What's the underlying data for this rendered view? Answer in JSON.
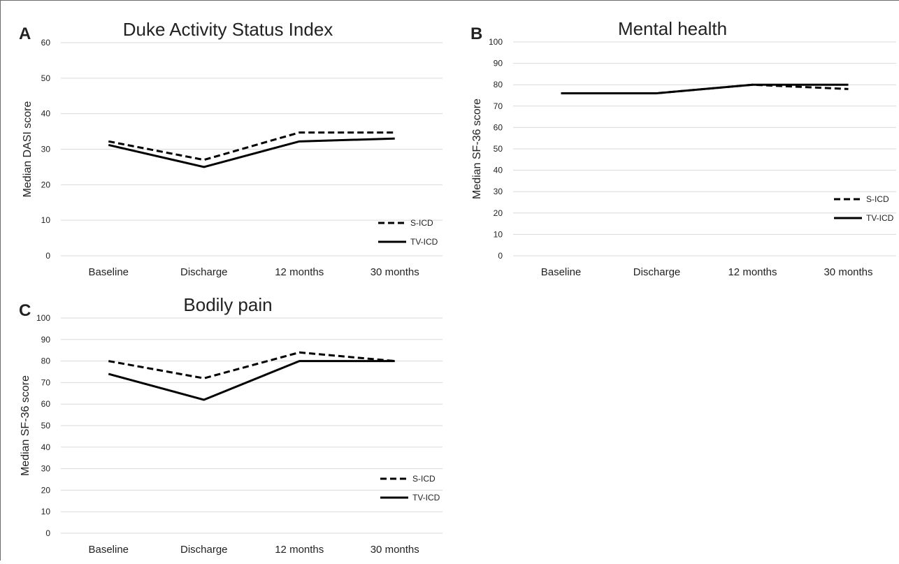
{
  "chart_data": [
    {
      "panel_letter": "A",
      "type": "line",
      "title": "Duke Activity Status Index",
      "ylabel": "Median DASI score",
      "xlabel": "",
      "categories": [
        "Baseline",
        "Discharge",
        "12 months",
        "30 months"
      ],
      "ylim": [
        0,
        60
      ],
      "yticks": [
        0,
        10,
        20,
        30,
        40,
        50,
        60
      ],
      "grid": true,
      "legend_position": "bottom-right",
      "series": [
        {
          "name": "S-ICD",
          "style": "dashed",
          "values": [
            32.2,
            27,
            34.7,
            34.7
          ]
        },
        {
          "name": "TV-ICD",
          "style": "solid",
          "values": [
            31.2,
            25,
            32.2,
            33
          ]
        }
      ]
    },
    {
      "panel_letter": "B",
      "type": "line",
      "title": "Mental health",
      "ylabel": "Median SF-36 score",
      "xlabel": "",
      "categories": [
        "Baseline",
        "Discharge",
        "12 months",
        "30 months"
      ],
      "ylim": [
        0,
        100
      ],
      "yticks": [
        0,
        10,
        20,
        30,
        40,
        50,
        60,
        70,
        80,
        90,
        100
      ],
      "grid": true,
      "legend_position": "bottom-right",
      "series": [
        {
          "name": "S-ICD",
          "style": "dashed",
          "values": [
            76,
            76,
            80,
            78
          ]
        },
        {
          "name": "TV-ICD",
          "style": "solid",
          "values": [
            76,
            76,
            80,
            80
          ]
        }
      ]
    },
    {
      "panel_letter": "C",
      "type": "line",
      "title": "Bodily pain",
      "ylabel": "Median SF-36 score",
      "xlabel": "",
      "categories": [
        "Baseline",
        "Discharge",
        "12 months",
        "30 months"
      ],
      "ylim": [
        0,
        100
      ],
      "yticks": [
        0,
        10,
        20,
        30,
        40,
        50,
        60,
        70,
        80,
        90,
        100
      ],
      "grid": true,
      "legend_position": "bottom-right",
      "series": [
        {
          "name": "S-ICD",
          "style": "dashed",
          "values": [
            80,
            72,
            84,
            80
          ]
        },
        {
          "name": "TV-ICD",
          "style": "solid",
          "values": [
            74,
            62,
            80,
            80
          ]
        }
      ]
    }
  ]
}
